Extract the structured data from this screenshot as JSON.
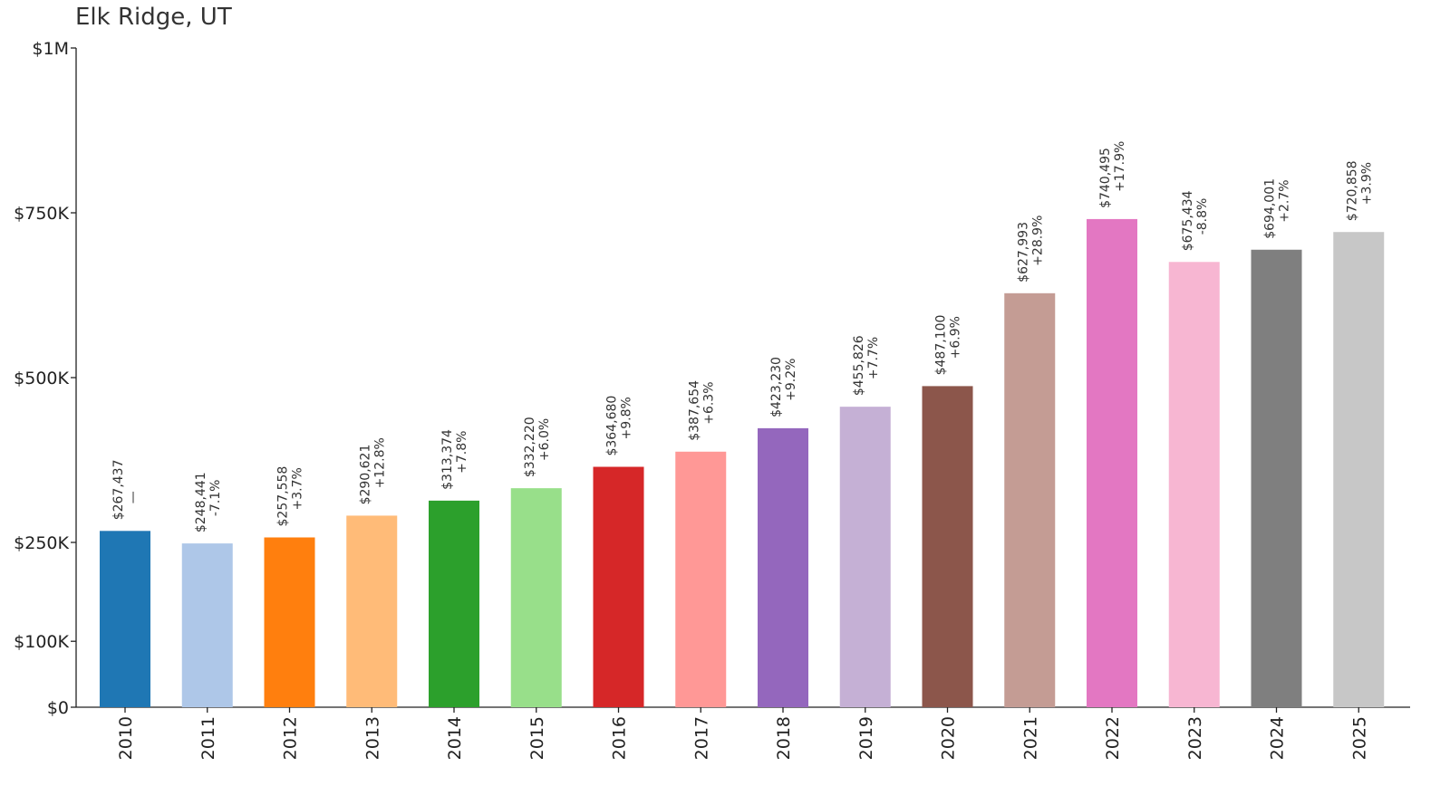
{
  "chart_data": {
    "type": "bar",
    "title": "Elk Ridge, UT",
    "xlabel": "",
    "ylabel": "",
    "categories": [
      "2010",
      "2011",
      "2012",
      "2013",
      "2014",
      "2015",
      "2016",
      "2017",
      "2018",
      "2019",
      "2020",
      "2021",
      "2022",
      "2023",
      "2024",
      "2025"
    ],
    "values": [
      267437,
      248441,
      257558,
      290621,
      313374,
      332220,
      364680,
      387654,
      423230,
      455826,
      487100,
      627993,
      740495,
      675434,
      694001,
      720858
    ],
    "value_labels": [
      "$267,437",
      "$248,441",
      "$257,558",
      "$290,621",
      "$313,374",
      "$332,220",
      "$364,680",
      "$387,654",
      "$423,230",
      "$455,826",
      "$487,100",
      "$627,993",
      "$740,495",
      "$675,434",
      "$694,001",
      "$720,858"
    ],
    "change_labels": [
      "—",
      "-7.1%",
      "+3.7%",
      "+12.8%",
      "+7.8%",
      "+6.0%",
      "+9.8%",
      "+6.3%",
      "+9.2%",
      "+7.7%",
      "+6.9%",
      "+28.9%",
      "+17.9%",
      "-8.8%",
      "+2.7%",
      "+3.9%"
    ],
    "colors": [
      "#1f77b4",
      "#aec7e8",
      "#ff7f0e",
      "#ffbb78",
      "#2ca02c",
      "#98df8a",
      "#d62728",
      "#ff9896",
      "#9467bd",
      "#c5b0d5",
      "#8c564b",
      "#c49c94",
      "#e377c2",
      "#f7b6d2",
      "#7f7f7f",
      "#c7c7c7"
    ],
    "y_ticks": [
      0,
      100000,
      250000,
      500000,
      750000,
      1000000
    ],
    "y_tick_labels": [
      "$0",
      "$100K",
      "$250K",
      "$500K",
      "$750K",
      "$1M"
    ],
    "ylim": [
      0,
      1000000
    ],
    "grid": false,
    "legend": "none"
  }
}
